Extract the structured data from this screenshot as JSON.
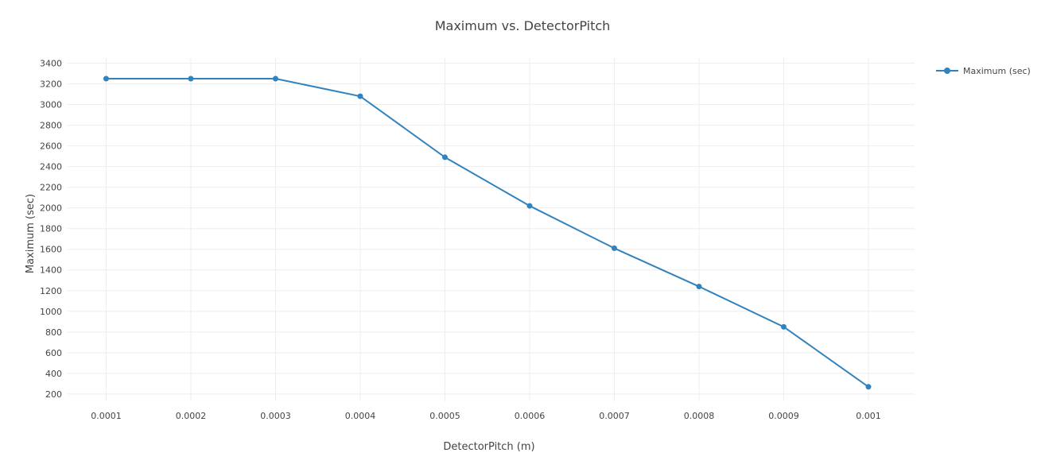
{
  "chart_data": {
    "type": "line",
    "title": "Maximum vs. DetectorPitch",
    "xlabel": "DetectorPitch (m)",
    "ylabel": "Maximum (sec)",
    "x": [
      0.0001,
      0.0002,
      0.0003,
      0.0004,
      0.0005,
      0.0006,
      0.0007,
      0.0008,
      0.0009,
      0.001
    ],
    "x_tick_labels": [
      "0.0001",
      "0.0002",
      "0.0003",
      "0.0004",
      "0.0005",
      "0.0006",
      "0.0007",
      "0.0008",
      "0.0009",
      "0.001"
    ],
    "y_ticks": [
      200,
      400,
      600,
      800,
      1000,
      1200,
      1400,
      1600,
      1800,
      2000,
      2200,
      2400,
      2600,
      2800,
      3000,
      3200,
      3400
    ],
    "y_tick_labels": [
      "200",
      "400",
      "600",
      "800",
      "1000",
      "1200",
      "1400",
      "1600",
      "1800",
      "2000",
      "2200",
      "2400",
      "2600",
      "2800",
      "3000",
      "3200",
      "3400"
    ],
    "ylim": [
      130,
      3450
    ],
    "xlim": [
      5.45e-05,
      0.0010545
    ],
    "grid": true,
    "legend": "top-right",
    "series": [
      {
        "name": "Maximum (sec)",
        "color": "#3182bd",
        "values": [
          3250,
          3250,
          3250,
          3080,
          2490,
          2020,
          1610,
          1240,
          850,
          270
        ]
      }
    ]
  }
}
